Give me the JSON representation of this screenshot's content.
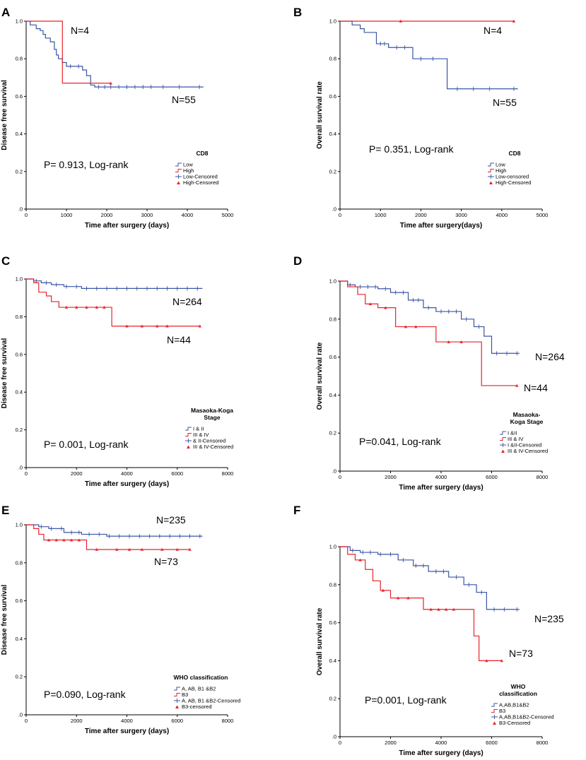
{
  "figure_labels": [
    "A",
    "B",
    "C",
    "D",
    "E",
    "F"
  ],
  "colors": {
    "low_group": "#3a55a5",
    "high_group": "#e8232b",
    "axis": "#000000"
  },
  "chart_data": [
    {
      "type": "line",
      "panel": "A",
      "xlabel": "Time after surgery (days)",
      "ylabel": "Disease free survival",
      "xlim": [
        0,
        5000
      ],
      "ylim": [
        0,
        1.0
      ],
      "xticks": [
        0,
        1000,
        2000,
        3000,
        4000,
        5000
      ],
      "xtick_labels": [
        "0",
        "1000",
        "2000",
        "3000",
        "4000",
        "5000"
      ],
      "yticks": [
        0,
        0.2,
        0.4,
        0.6,
        0.8,
        1.0
      ],
      "ytick_labels": [
        ".0",
        "0.2",
        "0.4",
        "0.6",
        "0.8",
        "1.0"
      ],
      "series": [
        {
          "name": "Low",
          "color": "#3a55a5",
          "steps": [
            [
              0,
              1.0
            ],
            [
              100,
              0.98
            ],
            [
              250,
              0.96
            ],
            [
              350,
              0.95
            ],
            [
              420,
              0.93
            ],
            [
              480,
              0.91
            ],
            [
              600,
              0.89
            ],
            [
              700,
              0.85
            ],
            [
              750,
              0.82
            ],
            [
              800,
              0.8
            ],
            [
              900,
              0.78
            ],
            [
              1000,
              0.76
            ],
            [
              1400,
              0.74
            ],
            [
              1500,
              0.71
            ],
            [
              1600,
              0.66
            ],
            [
              1700,
              0.65
            ],
            [
              4400,
              0.65
            ]
          ],
          "censored": [
            1100,
            1300,
            1800,
            1950,
            2100,
            2300,
            2500,
            2700,
            2900,
            3100,
            3400,
            3800,
            4300
          ]
        },
        {
          "name": "High",
          "color": "#e8232b",
          "steps": [
            [
              0,
              1.0
            ],
            [
              900,
              0.67
            ],
            [
              2100,
              0.67
            ]
          ],
          "censored": [
            2100
          ]
        }
      ],
      "annotations": [
        "N=4",
        "N=55",
        "P= 0.913,  Log-rank"
      ],
      "legend": {
        "title": "CD8",
        "entries": [
          "Low",
          "High",
          "Low-Censored",
          "High-Censored"
        ]
      }
    },
    {
      "type": "line",
      "panel": "B",
      "xlabel": "Time after surgery(days)",
      "ylabel": "Overall survival rate",
      "xlim": [
        0,
        5000
      ],
      "ylim": [
        0,
        1.0
      ],
      "xticks": [
        0,
        1000,
        2000,
        3000,
        4000,
        5000
      ],
      "xtick_labels": [
        "0",
        "1000",
        "2000",
        "3000",
        "4000",
        "5000"
      ],
      "yticks": [
        0,
        0.2,
        0.4,
        0.6,
        0.8,
        1.0
      ],
      "ytick_labels": [
        ".0",
        "0.2",
        "0.4",
        "0.6",
        "0.8",
        "1.0"
      ],
      "series": [
        {
          "name": "Low",
          "color": "#3a55a5",
          "steps": [
            [
              0,
              1.0
            ],
            [
              300,
              0.98
            ],
            [
              500,
              0.96
            ],
            [
              600,
              0.94
            ],
            [
              900,
              0.88
            ],
            [
              1200,
              0.86
            ],
            [
              1800,
              0.8
            ],
            [
              2650,
              0.64
            ],
            [
              4400,
              0.64
            ]
          ],
          "censored": [
            1000,
            1100,
            1400,
            1600,
            2000,
            2300,
            2900,
            3300,
            3700,
            4300
          ]
        },
        {
          "name": "High",
          "color": "#e8232b",
          "steps": [
            [
              0,
              1.0
            ],
            [
              4300,
              1.0
            ]
          ],
          "censored": [
            1500,
            4300
          ]
        }
      ],
      "annotations": [
        "N=4",
        "N=55",
        "P= 0.351,  Log-rank"
      ],
      "legend": {
        "title": "CD8",
        "entries": [
          "Low",
          "High",
          "Low-censored",
          "High-Censored"
        ]
      }
    },
    {
      "type": "line",
      "panel": "C",
      "xlabel": "Time after surgery (days)",
      "ylabel": "Disease free survival",
      "xlim": [
        0,
        8000
      ],
      "ylim": [
        0,
        1.0
      ],
      "xticks": [
        0,
        2000,
        4000,
        6000,
        8000
      ],
      "xtick_labels": [
        "0",
        "2000",
        "4000",
        "6000",
        "8000"
      ],
      "yticks": [
        0,
        0.2,
        0.4,
        0.6,
        0.8,
        1.0
      ],
      "ytick_labels": [
        ".0",
        "0.2",
        "0.4",
        "0.6",
        "0.8",
        "1.0"
      ],
      "series": [
        {
          "name": "I & II",
          "color": "#3a55a5",
          "steps": [
            [
              0,
              1.0
            ],
            [
              300,
              0.99
            ],
            [
              600,
              0.98
            ],
            [
              1000,
              0.97
            ],
            [
              1500,
              0.96
            ],
            [
              2200,
              0.95
            ],
            [
              7000,
              0.95
            ]
          ],
          "censored": [
            400,
            800,
            1200,
            1600,
            2000,
            2400,
            2800,
            3200,
            3600,
            4000,
            4400,
            4800,
            5200,
            5600,
            6000,
            6400,
            6800
          ]
        },
        {
          "name": "III & IV",
          "color": "#e8232b",
          "steps": [
            [
              0,
              1.0
            ],
            [
              300,
              0.98
            ],
            [
              500,
              0.93
            ],
            [
              800,
              0.91
            ],
            [
              1000,
              0.88
            ],
            [
              1300,
              0.85
            ],
            [
              3400,
              0.75
            ],
            [
              6900,
              0.75
            ]
          ],
          "censored": [
            1600,
            2000,
            2400,
            2800,
            3100,
            4000,
            4600,
            5200,
            5600,
            6900
          ]
        }
      ],
      "annotations": [
        "N=264",
        "N=44",
        "P= 0.001,  Log-rank"
      ],
      "legend": {
        "title_lines": [
          "Masaoka-Koga",
          "Stage"
        ],
        "entries": [
          "I & II",
          "III & IV",
          "  & II-Censored",
          "III & IV-Censored"
        ]
      }
    },
    {
      "type": "line",
      "panel": "D",
      "xlabel": "Time after surgery (days)",
      "ylabel": "Overall survival rate",
      "xlim": [
        0,
        8000
      ],
      "ylim": [
        0,
        1.0
      ],
      "xticks": [
        0,
        2000,
        4000,
        6000,
        8000
      ],
      "xtick_labels": [
        "0",
        "2000",
        "4000",
        "6000",
        "8000"
      ],
      "yticks": [
        0,
        0.2,
        0.4,
        0.6,
        0.8,
        1.0
      ],
      "ytick_labels": [
        ".0",
        "0.2",
        "0.4",
        "0.6",
        "0.8",
        "1.0"
      ],
      "series": [
        {
          "name": "I &II",
          "color": "#3a55a5",
          "steps": [
            [
              0,
              1.0
            ],
            [
              300,
              0.98
            ],
            [
              600,
              0.97
            ],
            [
              1500,
              0.96
            ],
            [
              2000,
              0.94
            ],
            [
              2700,
              0.9
            ],
            [
              3300,
              0.86
            ],
            [
              3800,
              0.84
            ],
            [
              4800,
              0.8
            ],
            [
              5300,
              0.76
            ],
            [
              5700,
              0.71
            ],
            [
              6000,
              0.62
            ],
            [
              7100,
              0.62
            ]
          ],
          "censored": [
            400,
            800,
            1100,
            1400,
            1800,
            2200,
            2500,
            2900,
            3100,
            3500,
            4000,
            4300,
            4600,
            5000,
            5500,
            6200,
            6600,
            7000
          ]
        },
        {
          "name": "III & IV",
          "color": "#e8232b",
          "steps": [
            [
              0,
              1.0
            ],
            [
              300,
              0.97
            ],
            [
              700,
              0.93
            ],
            [
              1000,
              0.88
            ],
            [
              1500,
              0.86
            ],
            [
              2200,
              0.76
            ],
            [
              3800,
              0.68
            ],
            [
              5600,
              0.45
            ],
            [
              7000,
              0.45
            ]
          ],
          "censored": [
            1200,
            1800,
            2600,
            3000,
            4300,
            4800,
            7000
          ]
        }
      ],
      "annotations": [
        "N=264",
        "N=44",
        "P=0.041,  Log-rank"
      ],
      "legend": {
        "title_lines": [
          "Masaoka-",
          "Koga Stage"
        ],
        "entries": [
          "I &II",
          "III & IV",
          "I &II-Censored",
          "III & IV-Censored"
        ]
      }
    },
    {
      "type": "line",
      "panel": "E",
      "xlabel": "Time after surgery (days)",
      "ylabel": "Disease free survival",
      "xlim": [
        0,
        8000
      ],
      "ylim": [
        0,
        1.0
      ],
      "xticks": [
        0,
        2000,
        4000,
        6000,
        8000
      ],
      "xtick_labels": [
        "0",
        "2000",
        "4000",
        "6000",
        "8000"
      ],
      "yticks": [
        0,
        0.2,
        0.4,
        0.6,
        0.8,
        1.0
      ],
      "ytick_labels": [
        ".0",
        "0.2",
        "0.4",
        "0.6",
        "0.8",
        "1.0"
      ],
      "series": [
        {
          "name": "A, AB, B1 &B2",
          "color": "#3a55a5",
          "steps": [
            [
              0,
              1.0
            ],
            [
              500,
              0.99
            ],
            [
              900,
              0.98
            ],
            [
              1500,
              0.96
            ],
            [
              2200,
              0.95
            ],
            [
              3200,
              0.94
            ],
            [
              7000,
              0.94
            ]
          ],
          "censored": [
            600,
            1000,
            1400,
            1800,
            2100,
            2500,
            2900,
            3300,
            3700,
            4100,
            4500,
            4900,
            5300,
            5700,
            6100,
            6500,
            6900
          ]
        },
        {
          "name": "B3",
          "color": "#e8232b",
          "steps": [
            [
              0,
              1.0
            ],
            [
              300,
              0.98
            ],
            [
              500,
              0.95
            ],
            [
              700,
              0.92
            ],
            [
              2400,
              0.87
            ],
            [
              6500,
              0.87
            ]
          ],
          "censored": [
            900,
            1200,
            1500,
            1800,
            2100,
            2800,
            3600,
            4100,
            4600,
            5400,
            6000,
            6500
          ]
        }
      ],
      "annotations": [
        "N=235",
        "N=73",
        "P=0.090,  Log-rank"
      ],
      "legend": {
        "title": "WHO classification",
        "entries": [
          "A, AB, B1 &B2",
          "B3",
          "A, AB, B1 &B2-Censored",
          "B3-censored"
        ]
      }
    },
    {
      "type": "line",
      "panel": "F",
      "xlabel": "Time after surgery (days)",
      "ylabel": "Overall survival rate",
      "xlim": [
        0,
        8000
      ],
      "ylim": [
        0,
        1.0
      ],
      "xticks": [
        0,
        2000,
        4000,
        6000,
        8000
      ],
      "xtick_labels": [
        "0",
        "2000",
        "4000",
        "6000",
        "8000"
      ],
      "yticks": [
        0,
        0.2,
        0.4,
        0.6,
        0.8,
        1.0
      ],
      "ytick_labels": [
        ".0",
        "0.2",
        "0.4",
        "0.6",
        "0.8",
        "1.0"
      ],
      "series": [
        {
          "name": "A,AB,B1&B2",
          "color": "#3a55a5",
          "steps": [
            [
              0,
              1.0
            ],
            [
              400,
              0.98
            ],
            [
              800,
              0.97
            ],
            [
              1500,
              0.96
            ],
            [
              2300,
              0.93
            ],
            [
              2900,
              0.9
            ],
            [
              3500,
              0.87
            ],
            [
              4300,
              0.84
            ],
            [
              4900,
              0.8
            ],
            [
              5400,
              0.76
            ],
            [
              5800,
              0.67
            ],
            [
              7100,
              0.67
            ]
          ],
          "censored": [
            500,
            900,
            1200,
            1600,
            2000,
            2500,
            3000,
            3300,
            3800,
            4100,
            4600,
            5100,
            5600,
            6100,
            6500,
            7000
          ]
        },
        {
          "name": "B3",
          "color": "#e8232b",
          "steps": [
            [
              0,
              1.0
            ],
            [
              300,
              0.96
            ],
            [
              600,
              0.93
            ],
            [
              1000,
              0.88
            ],
            [
              1300,
              0.82
            ],
            [
              1600,
              0.77
            ],
            [
              2000,
              0.73
            ],
            [
              3300,
              0.67
            ],
            [
              5300,
              0.53
            ],
            [
              5500,
              0.4
            ],
            [
              6400,
              0.4
            ]
          ],
          "censored": [
            800,
            1700,
            2300,
            2700,
            3600,
            3900,
            4200,
            4500,
            5800,
            6400
          ]
        }
      ],
      "annotations": [
        "N=235",
        "N=73",
        "P=0.001,  Log-rank"
      ],
      "legend": {
        "title_lines": [
          "WHO",
          "classification"
        ],
        "entries": [
          "A,AB,B1&B2",
          "B3",
          "A,AB,B1&B2-Censored",
          "B3-Censored"
        ]
      }
    }
  ]
}
